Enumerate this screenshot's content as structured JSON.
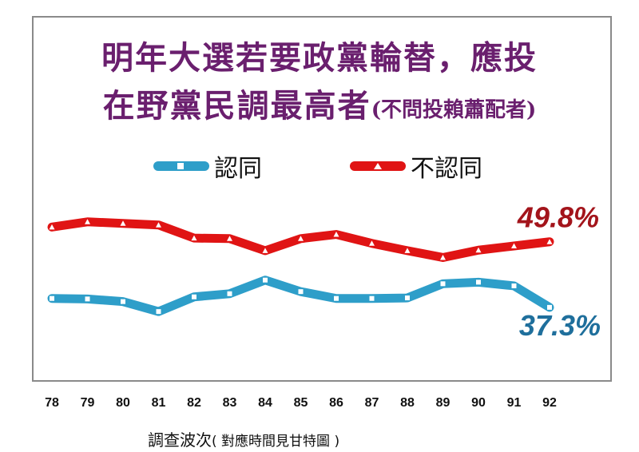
{
  "chart_data": {
    "type": "line",
    "title_line1": "明年大選若要政黨輪替，應投",
    "title_line2": "在野黨民調最高者",
    "title_note": "(不問投賴蕭配者)",
    "xlabel": "調查波次",
    "xlabel_note": "( 對應時間見甘特圖 )",
    "categories": [
      "78",
      "79",
      "80",
      "81",
      "82",
      "83",
      "84",
      "85",
      "86",
      "87",
      "88",
      "89",
      "90",
      "91",
      "92"
    ],
    "ylim": [
      28,
      56
    ],
    "series": [
      {
        "name": "認同",
        "color": "#2e9ec9",
        "end_label": "37.3%",
        "values": [
          39.0,
          38.9,
          38.4,
          36.5,
          39.3,
          39.9,
          42.5,
          40.3,
          39.0,
          39.0,
          39.1,
          41.8,
          42.1,
          41.4,
          37.3
        ]
      },
      {
        "name": "不認同",
        "color": "#e01414",
        "end_label": "49.8%",
        "values": [
          52.6,
          53.6,
          53.3,
          53.0,
          50.5,
          50.4,
          48.1,
          50.4,
          51.2,
          49.5,
          48.1,
          46.8,
          48.2,
          49.0,
          49.8
        ]
      }
    ],
    "legend": [
      {
        "label": "認同",
        "color": "#2e9ec9"
      },
      {
        "label": "不認同",
        "color": "#e01414"
      }
    ],
    "grid": false,
    "legend_position": "top-center"
  }
}
